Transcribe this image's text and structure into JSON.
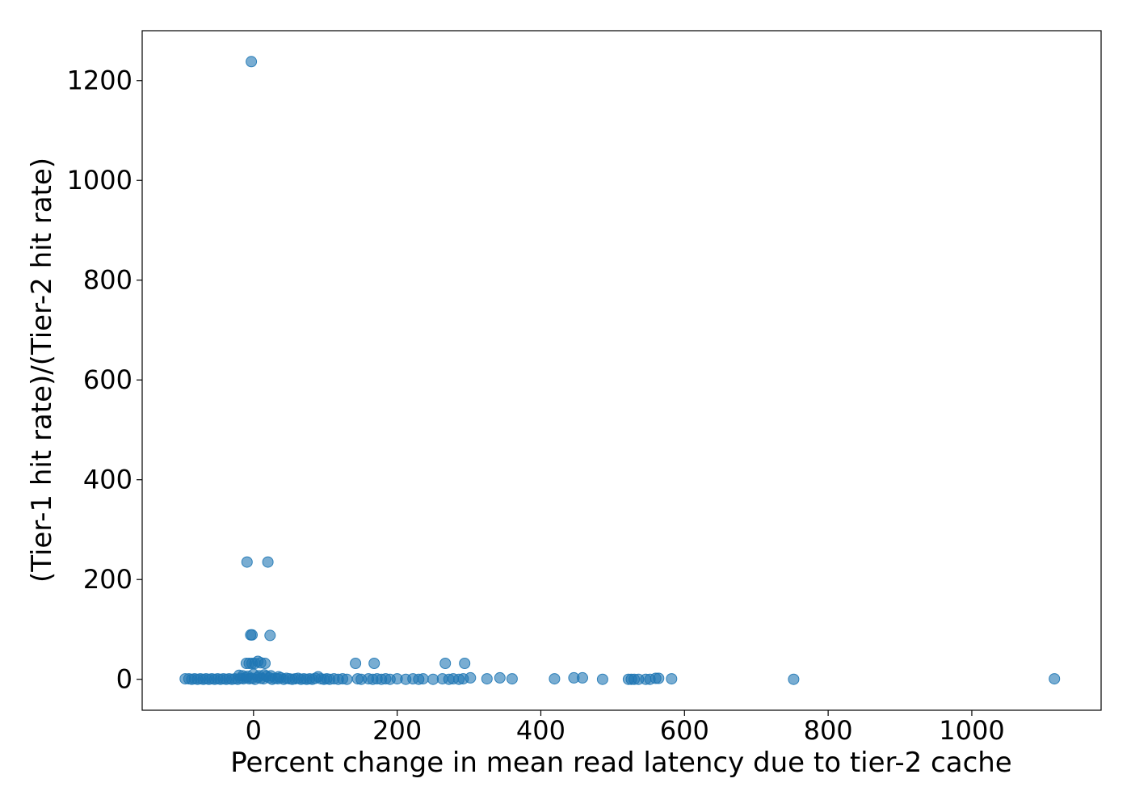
{
  "chart_data": {
    "type": "scatter",
    "title": "",
    "xlabel": "Percent change in mean read latency due to tier-2 cache",
    "ylabel": "(Tier-1 hit rate)/(Tier-2 hit rate)",
    "xlim": [
      -155,
      1180
    ],
    "ylim": [
      -62,
      1300
    ],
    "xticks": [
      0,
      200,
      400,
      600,
      800,
      1000
    ],
    "yticks": [
      0,
      200,
      400,
      600,
      800,
      1000,
      1200
    ],
    "grid": false,
    "legend": "none",
    "color": "#1f77b4",
    "points": [
      [
        -3,
        1238
      ],
      [
        -9,
        235
      ],
      [
        20,
        235
      ],
      [
        -4,
        89
      ],
      [
        -2,
        89
      ],
      [
        23,
        88
      ],
      [
        -10,
        32
      ],
      [
        -6,
        32
      ],
      [
        -2,
        32
      ],
      [
        2,
        32
      ],
      [
        6,
        36
      ],
      [
        10,
        33
      ],
      [
        16,
        32
      ],
      [
        142,
        32
      ],
      [
        168,
        32
      ],
      [
        267,
        32
      ],
      [
        294,
        32
      ],
      [
        -95,
        1
      ],
      [
        -90,
        1
      ],
      [
        -86,
        0
      ],
      [
        -82,
        1
      ],
      [
        -78,
        0
      ],
      [
        -74,
        1
      ],
      [
        -70,
        0
      ],
      [
        -66,
        1
      ],
      [
        -62,
        0
      ],
      [
        -58,
        1
      ],
      [
        -54,
        0
      ],
      [
        -50,
        1
      ],
      [
        -46,
        0
      ],
      [
        -42,
        1
      ],
      [
        -38,
        0
      ],
      [
        -34,
        1
      ],
      [
        -30,
        0
      ],
      [
        -26,
        1
      ],
      [
        -22,
        0
      ],
      [
        -18,
        2
      ],
      [
        -14,
        1
      ],
      [
        -10,
        3
      ],
      [
        -6,
        1
      ],
      [
        -2,
        2
      ],
      [
        2,
        0
      ],
      [
        6,
        4
      ],
      [
        10,
        2
      ],
      [
        14,
        1
      ],
      [
        18,
        6
      ],
      [
        22,
        3
      ],
      [
        26,
        0
      ],
      [
        30,
        2
      ],
      [
        34,
        1
      ],
      [
        38,
        3
      ],
      [
        42,
        0
      ],
      [
        46,
        2
      ],
      [
        50,
        1
      ],
      [
        54,
        0
      ],
      [
        58,
        1
      ],
      [
        62,
        2
      ],
      [
        66,
        0
      ],
      [
        70,
        1
      ],
      [
        74,
        0
      ],
      [
        78,
        1
      ],
      [
        82,
        0
      ],
      [
        86,
        2
      ],
      [
        90,
        5
      ],
      [
        94,
        1
      ],
      [
        98,
        0
      ],
      [
        102,
        1
      ],
      [
        106,
        0
      ],
      [
        112,
        1
      ],
      [
        118,
        0
      ],
      [
        124,
        1
      ],
      [
        130,
        0
      ],
      [
        -20,
        8
      ],
      [
        -15,
        7
      ],
      [
        -8,
        6
      ],
      [
        0,
        10
      ],
      [
        8,
        7
      ],
      [
        15,
        9
      ],
      [
        24,
        7
      ],
      [
        35,
        5
      ],
      [
        145,
        1
      ],
      [
        150,
        0
      ],
      [
        160,
        1
      ],
      [
        166,
        0
      ],
      [
        172,
        1
      ],
      [
        178,
        0
      ],
      [
        184,
        1
      ],
      [
        190,
        0
      ],
      [
        200,
        1
      ],
      [
        212,
        0
      ],
      [
        222,
        1
      ],
      [
        230,
        0
      ],
      [
        236,
        1
      ],
      [
        250,
        0
      ],
      [
        263,
        1
      ],
      [
        272,
        0
      ],
      [
        278,
        1
      ],
      [
        286,
        0
      ],
      [
        292,
        1
      ],
      [
        302,
        3
      ],
      [
        325,
        1
      ],
      [
        343,
        3
      ],
      [
        360,
        1
      ],
      [
        419,
        1
      ],
      [
        446,
        3
      ],
      [
        458,
        3
      ],
      [
        486,
        0
      ],
      [
        522,
        0
      ],
      [
        526,
        0
      ],
      [
        530,
        0
      ],
      [
        536,
        0
      ],
      [
        546,
        0
      ],
      [
        552,
        0
      ],
      [
        560,
        2
      ],
      [
        564,
        2
      ],
      [
        582,
        1
      ],
      [
        752,
        0
      ],
      [
        1115,
        1
      ]
    ]
  }
}
